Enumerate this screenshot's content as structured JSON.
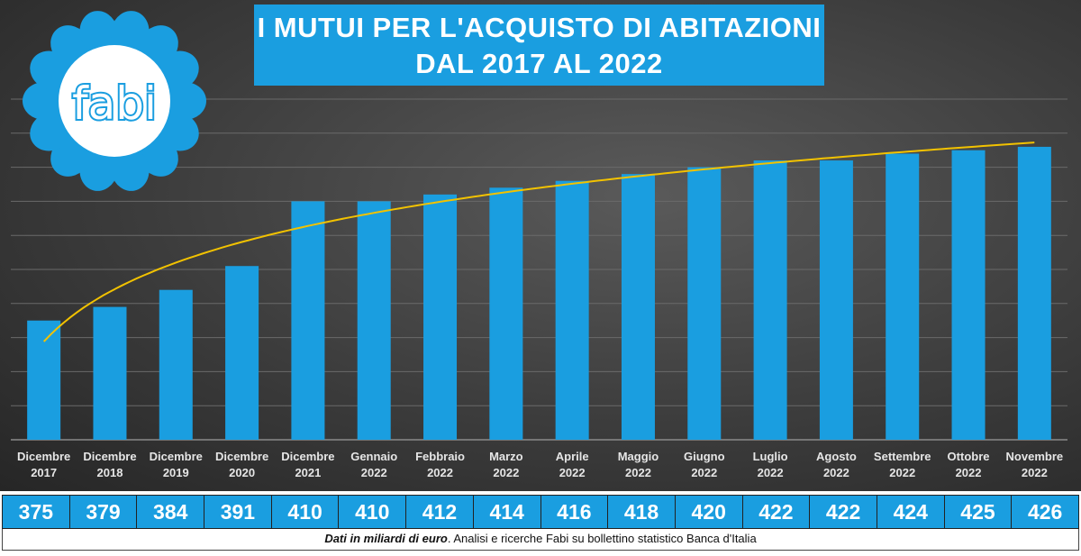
{
  "chart_data": {
    "type": "bar",
    "title": "I MUTUI PER L'ACQUISTO DI ABITAZIONI",
    "subtitle": "DAL 2017 AL 2022",
    "categories": [
      [
        "Dicembre",
        "2017"
      ],
      [
        "Dicembre",
        "2018"
      ],
      [
        "Dicembre",
        "2019"
      ],
      [
        "Dicembre",
        "2020"
      ],
      [
        "Dicembre",
        "2021"
      ],
      [
        "Gennaio",
        "2022"
      ],
      [
        "Febbraio",
        "2022"
      ],
      [
        "Marzo",
        "2022"
      ],
      [
        "Aprile",
        "2022"
      ],
      [
        "Maggio",
        "2022"
      ],
      [
        "Giugno",
        "2022"
      ],
      [
        "Luglio",
        "2022"
      ],
      [
        "Agosto",
        "2022"
      ],
      [
        "Settembre",
        "2022"
      ],
      [
        "Ottobre",
        "2022"
      ],
      [
        "Novembre",
        "2022"
      ]
    ],
    "values": [
      375,
      379,
      384,
      391,
      410,
      410,
      412,
      414,
      416,
      418,
      420,
      422,
      422,
      424,
      425,
      426
    ],
    "ylim": [
      340,
      440
    ],
    "grid": true,
    "ytick_step": 10,
    "y_tick_labels_shown": false,
    "trendline": {
      "type": "logarithmic",
      "color": "#f2c200"
    },
    "colors": {
      "bar": "#1a9ee0",
      "background": "#3c3c3c",
      "grid": "#6a6a6a"
    }
  },
  "note": {
    "italic": "Dati in miliardi di euro",
    "rest": ". Analisi e ricerche Fabi su bollettino statistico Banca d'Italia"
  },
  "logo": {
    "text": "fabi"
  }
}
